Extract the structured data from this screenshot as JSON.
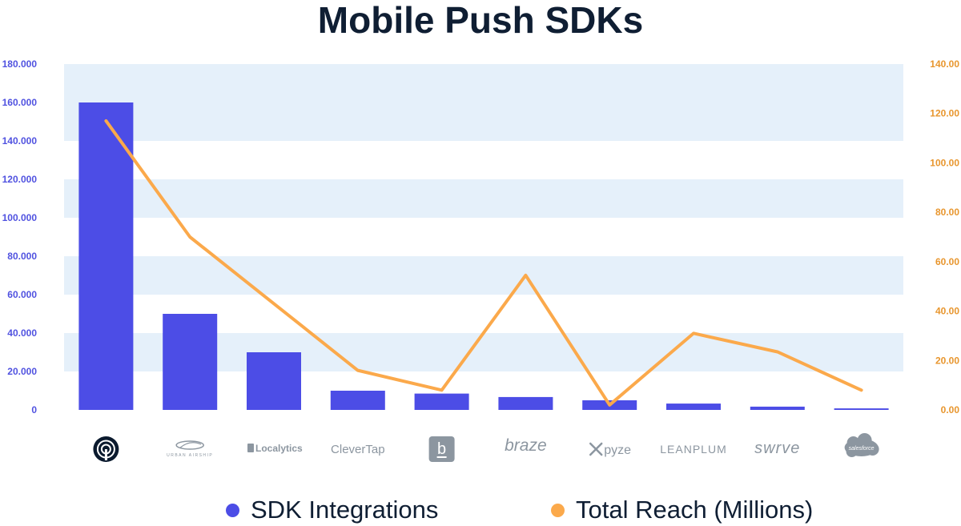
{
  "title": "Mobile Push SDKs",
  "colors": {
    "bar": "#4c4de6",
    "line": "#fba94b",
    "band": "#e5f0fa",
    "left_axis_text": "#5052e0",
    "right_axis_text": "#e8962e",
    "title_text": "#0f1e33",
    "logo_gray": "#8c96a0"
  },
  "legend": [
    {
      "label": "SDK Integrations",
      "color": "#4c4de6"
    },
    {
      "label": "Total Reach (Millions)",
      "color": "#fba94b"
    }
  ],
  "chart_data": {
    "type": "bar",
    "title": "Mobile Push SDKs",
    "categories": [
      "OneSignal",
      "Urban Airship",
      "Localytics",
      "CleverTap",
      "Batch",
      "Braze",
      "Pyze",
      "Leanplum",
      "Swrve",
      "Salesforce"
    ],
    "series": [
      {
        "name": "SDK Integrations",
        "type": "bar",
        "axis": "left",
        "values": [
          160000,
          50000,
          30000,
          10000,
          8500,
          6700,
          5000,
          3300,
          1700,
          800
        ]
      },
      {
        "name": "Total Reach (Millions)",
        "type": "line",
        "axis": "right",
        "values": [
          117,
          70,
          43,
          16,
          8,
          54.5,
          2,
          31,
          23.5,
          8
        ]
      }
    ],
    "y_left": {
      "range": [
        0,
        180000
      ],
      "ticks": [
        0,
        20000,
        40000,
        60000,
        80000,
        100000,
        120000,
        140000,
        160000,
        180000
      ],
      "tick_labels": [
        "0",
        "20.000",
        "40.000",
        "60.000",
        "80.000",
        "100.000",
        "120.000",
        "140.000",
        "160.000",
        "180.000"
      ]
    },
    "y_right": {
      "range": [
        0,
        140
      ],
      "ticks": [
        0,
        20,
        40,
        60,
        80,
        100,
        120,
        140
      ],
      "tick_labels": [
        "0.00",
        "20.00",
        "40.00",
        "60.00",
        "80.00",
        "100.00",
        "120.00",
        "140.00"
      ]
    },
    "x_tick_labels": [
      "",
      "URBAN AIRSHIP",
      "Localytics",
      "CleverTap",
      "b",
      "braze",
      "pyze",
      "LEANPLUM",
      "swrve",
      "salesforce"
    ],
    "grid": "alternating horizontal bands",
    "legend_position": "bottom"
  }
}
